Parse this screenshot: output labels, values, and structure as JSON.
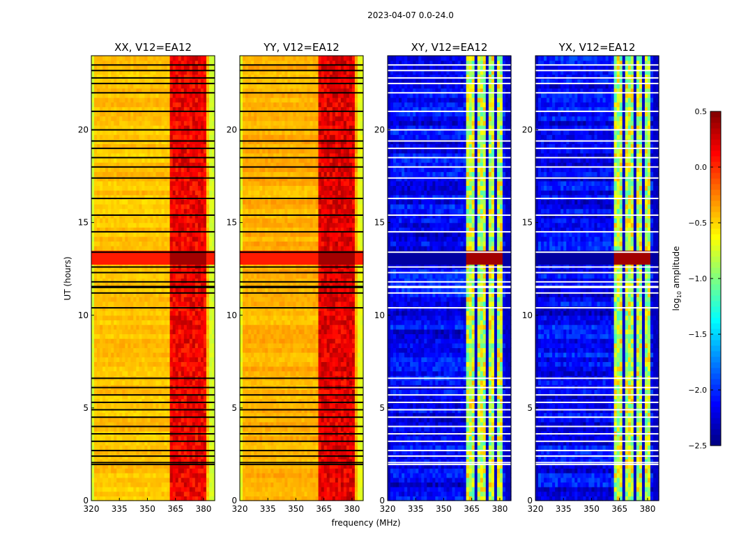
{
  "chart_data": {
    "type": "heatmap",
    "title": "2023-04-07 0.0-24.0",
    "xlabel": "frequency (MHz)",
    "ylabel": "UT (hours)",
    "xlim": [
      320,
      386
    ],
    "ylim": [
      0,
      24
    ],
    "xticks": [
      "320",
      "335",
      "350",
      "365",
      "380"
    ],
    "xtick_values": [
      320,
      335,
      350,
      365,
      380
    ],
    "yticks": [
      "0",
      "5",
      "10",
      "15",
      "20"
    ],
    "ytick_values": [
      0,
      5,
      10,
      15,
      20
    ],
    "colorbar": {
      "label": "log10 amplitude",
      "label_main": "log",
      "label_sub": "10",
      "label_rest": " amplitude",
      "range": [
        -2.5,
        0.5
      ],
      "ticks": [
        "0.5",
        "0.0",
        "−0.5",
        "−1.0",
        "−1.5",
        "−2.0",
        "−2.5"
      ],
      "tick_values": [
        0.5,
        0.0,
        -0.5,
        -1.0,
        -1.5,
        -2.0,
        -2.5
      ],
      "colormap": "jet"
    },
    "panels": [
      {
        "title": "XX, V12=EA12",
        "base_level": -0.45,
        "band_level": 0.15,
        "edge_level": -0.75,
        "flag_color": "#000000"
      },
      {
        "title": "YY, V12=EA12",
        "base_level": -0.4,
        "band_level": 0.2,
        "edge_level": -0.7,
        "flag_color": "#000000"
      },
      {
        "title": "XY, V12=EA12",
        "base_level": -2.15,
        "band_level": -0.8,
        "edge_level": -2.3,
        "flag_color": "#ffffff"
      },
      {
        "title": "YX, V12=EA12",
        "base_level": -2.15,
        "band_level": -0.8,
        "edge_level": -2.3,
        "flag_color": "#ffffff"
      }
    ],
    "rfi_band_mhz": [
      362,
      382
    ],
    "band_gap_channels_mhz": [
      367.5,
      373,
      378
    ],
    "bright_interval_hours": [
      12.7,
      13.4
    ],
    "flagged_hours": [
      1.95,
      2.05,
      2.4,
      2.7,
      3.2,
      3.6,
      4.0,
      4.5,
      4.9,
      5.3,
      5.7,
      6.1,
      6.6,
      10.4,
      11.2,
      11.5,
      11.55,
      11.8,
      12.3,
      12.6,
      13.4,
      14.5,
      15.4,
      16.3,
      17.4,
      18.0,
      18.5,
      19.0,
      19.4,
      20.0,
      21.0,
      22.0,
      22.5,
      22.8,
      23.2,
      23.5
    ]
  }
}
